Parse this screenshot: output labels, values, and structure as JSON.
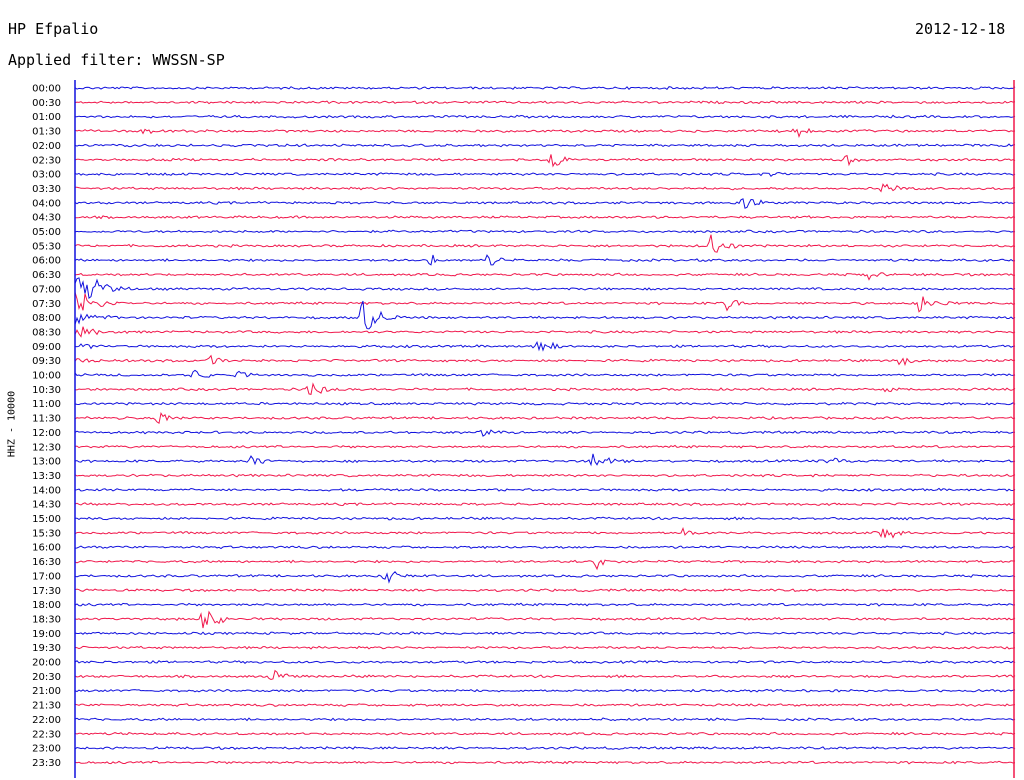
{
  "header": {
    "station": "HP Efpalio",
    "date": "2012-12-18",
    "filter": "Applied filter: WWSSN-SP",
    "channel_label": "HHZ - 10000"
  },
  "colors": {
    "even_row": "#1111dd",
    "odd_row": "#f0184c",
    "marker": "#1111dd"
  },
  "chart_data": {
    "type": "line",
    "title": "HP Efpalio",
    "subtitle": "Applied filter: WWSSN-SP",
    "ylabel": "HHZ - 10000",
    "rows": [
      "00:00",
      "00:30",
      "01:00",
      "01:30",
      "02:00",
      "02:30",
      "03:00",
      "03:30",
      "04:00",
      "04:30",
      "05:00",
      "05:30",
      "06:00",
      "06:30",
      "07:00",
      "07:30",
      "08:00",
      "08:30",
      "09:00",
      "09:30",
      "10:00",
      "10:30",
      "11:00",
      "11:30",
      "12:00",
      "12:30",
      "13:00",
      "13:30",
      "14:00",
      "14:30",
      "15:00",
      "15:30",
      "16:00",
      "16:30",
      "17:00",
      "17:30",
      "18:00",
      "18:30",
      "19:00",
      "19:30",
      "20:00",
      "20:30",
      "21:00",
      "21:30",
      "22:00",
      "22:30",
      "23:00",
      "23:30"
    ],
    "x_range_minutes": [
      0,
      30
    ],
    "row_colors": "alternating blue/red",
    "main_event": {
      "rows": [
        "07:00",
        "11:30"
      ],
      "minute": 0.2,
      "peak_amplitude": "clipped"
    },
    "events": [
      {
        "row": "01:30",
        "minute": 2.2,
        "amp": 6
      },
      {
        "row": "01:30",
        "minute": 23.0,
        "amp": 7
      },
      {
        "row": "02:30",
        "minute": 15.2,
        "amp": 12
      },
      {
        "row": "02:30",
        "minute": 24.5,
        "amp": 8
      },
      {
        "row": "03:00",
        "minute": 22.2,
        "amp": 5
      },
      {
        "row": "03:30",
        "minute": 25.8,
        "amp": 9
      },
      {
        "row": "04:00",
        "minute": 21.3,
        "amp": 10
      },
      {
        "row": "05:30",
        "minute": 20.3,
        "amp": 15
      },
      {
        "row": "06:00",
        "minute": 11.3,
        "amp": 8
      },
      {
        "row": "06:00",
        "minute": 13.2,
        "amp": 7
      },
      {
        "row": "06:30",
        "minute": 25.3,
        "amp": 6
      },
      {
        "row": "07:30",
        "minute": 20.8,
        "amp": 8
      },
      {
        "row": "07:30",
        "minute": 27.0,
        "amp": 15
      },
      {
        "row": "08:00",
        "minute": 9.2,
        "amp": 25
      },
      {
        "row": "09:00",
        "minute": 14.7,
        "amp": 10
      },
      {
        "row": "09:30",
        "minute": 4.3,
        "amp": 7
      },
      {
        "row": "09:30",
        "minute": 26.3,
        "amp": 8
      },
      {
        "row": "10:00",
        "minute": 3.8,
        "amp": 7
      },
      {
        "row": "10:00",
        "minute": 5.2,
        "amp": 6
      },
      {
        "row": "10:30",
        "minute": 7.5,
        "amp": 11
      },
      {
        "row": "10:30",
        "minute": 25.8,
        "amp": 9
      },
      {
        "row": "11:30",
        "minute": 2.6,
        "amp": 8
      },
      {
        "row": "12:00",
        "minute": 13.0,
        "amp": 6
      },
      {
        "row": "13:00",
        "minute": 5.6,
        "amp": 8
      },
      {
        "row": "13:00",
        "minute": 16.5,
        "amp": 12
      },
      {
        "row": "13:00",
        "minute": 24.1,
        "amp": 6
      },
      {
        "row": "15:30",
        "minute": 19.4,
        "amp": 6
      },
      {
        "row": "15:30",
        "minute": 25.8,
        "amp": 9
      },
      {
        "row": "16:30",
        "minute": 16.6,
        "amp": 10
      },
      {
        "row": "17:00",
        "minute": 9.9,
        "amp": 9
      },
      {
        "row": "18:30",
        "minute": 4.1,
        "amp": 14
      },
      {
        "row": "20:30",
        "minute": 6.3,
        "amp": 8
      }
    ]
  },
  "axes": {
    "clip_left_minute": 0.05,
    "clip_right_minute": 30.0
  }
}
